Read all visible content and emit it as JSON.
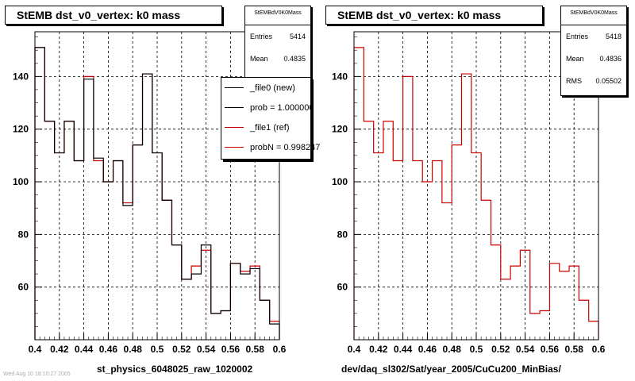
{
  "colors": {
    "frame": "#000000",
    "grid": "#000000",
    "new_hist": "#000000",
    "ref_hist": "#cc0000"
  },
  "chart_data": [
    {
      "type": "line",
      "title": "StEMB dst_v0_vertex: k0 mass",
      "xlabel": "st_physics_6048025_raw_1020002",
      "ylabel": "",
      "xlim": [
        0.4,
        0.6
      ],
      "ylim": [
        40,
        157
      ],
      "grid": true,
      "x_ticks": [
        "0.4",
        "0.42",
        "0.44",
        "0.46",
        "0.48",
        "0.5",
        "0.52",
        "0.54",
        "0.56",
        "0.58",
        "0.6"
      ],
      "y_ticks": [
        "60",
        "80",
        "100",
        "120",
        "140"
      ],
      "bin_edges": [
        0.4,
        0.408,
        0.416,
        0.424,
        0.432,
        0.44,
        0.448,
        0.456,
        0.464,
        0.472,
        0.48,
        0.488,
        0.496,
        0.504,
        0.512,
        0.52,
        0.528,
        0.536,
        0.544,
        0.552,
        0.56,
        0.568,
        0.576,
        0.584,
        0.592,
        0.6
      ],
      "series": [
        {
          "name": "_file0 (new)",
          "color": "#000000",
          "values": [
            151,
            123,
            111,
            123,
            108,
            139,
            109,
            100,
            108,
            91,
            114,
            141,
            111,
            93,
            76,
            63,
            65,
            76,
            50,
            51,
            69,
            65,
            67,
            55,
            46
          ]
        },
        {
          "name": "_file1 (ref)",
          "color": "#cc0000",
          "values": [
            151,
            123,
            111,
            123,
            108,
            140,
            108,
            100,
            108,
            92,
            114,
            141,
            111,
            93,
            76,
            63,
            68,
            74,
            50,
            51,
            69,
            66,
            68,
            55,
            47
          ]
        }
      ],
      "stats": {
        "name": "StEMBdV0K0Mass",
        "rows": [
          {
            "label": "Entries",
            "value": "5414"
          },
          {
            "label": "Mean",
            "value": "0.4835"
          }
        ]
      },
      "legend": {
        "entries": [
          {
            "label": "_file0 (new)",
            "color": "#000000"
          },
          {
            "label": "prob = 1.000000",
            "color": "#000000"
          },
          {
            "label": "_file1 (ref)",
            "color": "#cc0000"
          },
          {
            "label": "probN = 0.998247",
            "color": "#cc0000"
          }
        ]
      }
    },
    {
      "type": "line",
      "title": "StEMB dst_v0_vertex: k0 mass",
      "xlabel": "dev/daq_sl302/Sat/year_2005/CuCu200_MinBias/",
      "ylabel": "",
      "xlim": [
        0.4,
        0.6
      ],
      "ylim": [
        40,
        157
      ],
      "grid": true,
      "x_ticks": [
        "0.4",
        "0.42",
        "0.44",
        "0.46",
        "0.48",
        "0.5",
        "0.52",
        "0.54",
        "0.56",
        "0.58",
        "0.6"
      ],
      "y_ticks": [
        "60",
        "80",
        "100",
        "120",
        "140"
      ],
      "bin_edges": [
        0.4,
        0.408,
        0.416,
        0.424,
        0.432,
        0.44,
        0.448,
        0.456,
        0.464,
        0.472,
        0.48,
        0.488,
        0.496,
        0.504,
        0.512,
        0.52,
        0.528,
        0.536,
        0.544,
        0.552,
        0.56,
        0.568,
        0.576,
        0.584,
        0.592,
        0.6
      ],
      "series": [
        {
          "name": "",
          "color": "#cc0000",
          "values": [
            151,
            123,
            111,
            123,
            108,
            140,
            108,
            100,
            108,
            92,
            114,
            141,
            111,
            93,
            76,
            63,
            68,
            74,
            50,
            51,
            69,
            66,
            68,
            55,
            47
          ]
        }
      ],
      "stats": {
        "name": "StEMBdV0K0Mass",
        "rows": [
          {
            "label": "Entries",
            "value": "5418"
          },
          {
            "label": "Mean",
            "value": "0.4836"
          },
          {
            "label": "RMS",
            "value": "0.05502"
          }
        ]
      }
    }
  ],
  "footnote": "Wed Aug 10 18:10:27 2005"
}
